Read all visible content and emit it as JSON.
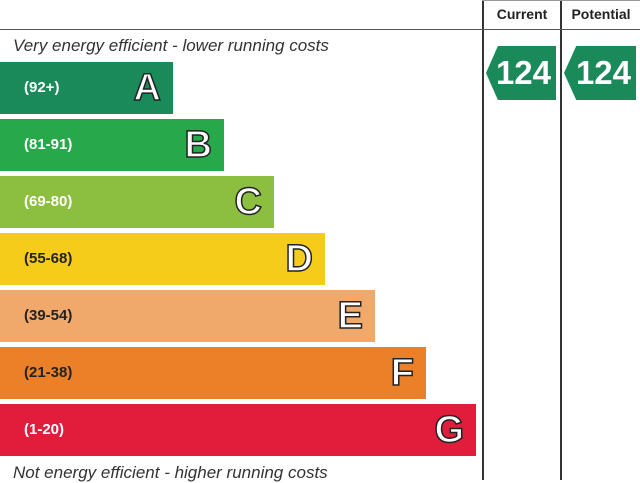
{
  "header": {
    "current_label": "Current",
    "potential_label": "Potential"
  },
  "captions": {
    "top": "Very energy efficient - lower running costs",
    "bottom": "Not energy efficient - higher running costs"
  },
  "bands": [
    {
      "letter": "A",
      "range": "(92+)",
      "color": "#1a8a5a"
    },
    {
      "letter": "B",
      "range": "(81-91)",
      "color": "#27a84a"
    },
    {
      "letter": "C",
      "range": "(69-80)",
      "color": "#8cbf3f"
    },
    {
      "letter": "D",
      "range": "(55-68)",
      "color": "#f5cc1a"
    },
    {
      "letter": "E",
      "range": "(39-54)",
      "color": "#f0a96a"
    },
    {
      "letter": "F",
      "range": "(21-38)",
      "color": "#ec8028"
    },
    {
      "letter": "G",
      "range": "(1-20)",
      "color": "#e21c3b"
    }
  ],
  "ratings": {
    "current": {
      "value": "124",
      "band": "A",
      "color": "#1a8a5a"
    },
    "potential": {
      "value": "124",
      "band": "A",
      "color": "#1a8a5a"
    }
  }
}
